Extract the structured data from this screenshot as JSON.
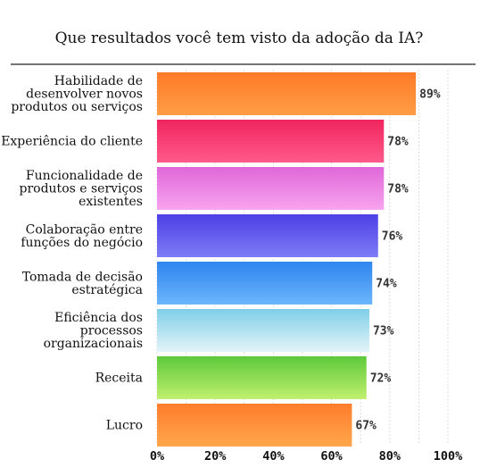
{
  "chart_data": {
    "type": "bar",
    "orientation": "horizontal",
    "title": "Que resultados você tem visto da adoção da IA?",
    "xlabel": "",
    "ylabel": "",
    "xlim": [
      0,
      100
    ],
    "grid": true,
    "categories": [
      "Habilidade de desenvolver novos produtos ou serviços",
      "Experiência do cliente",
      "Funcionalidade de produtos e serviços existentes",
      "Colaboração entre funções do negócio",
      "Tomada de decisão estratégica",
      "Eficiência dos processos organizacionais",
      "Receita",
      "Lucro"
    ],
    "category_lines": [
      [
        "Habilidade de",
        "desenvolver novos",
        "produtos ou serviços"
      ],
      [
        "Experiência do cliente"
      ],
      [
        "Funcionalidade de",
        "produtos e serviços",
        "existentes"
      ],
      [
        "Colaboração entre",
        "funções do negócio"
      ],
      [
        "Tomada de decisão",
        "estratégica"
      ],
      [
        "Eficiência dos",
        "processos",
        "organizacionais"
      ],
      [
        "Receita"
      ],
      [
        "Lucro"
      ]
    ],
    "values": [
      89,
      78,
      78,
      76,
      74,
      73,
      72,
      67
    ],
    "value_labels": [
      "89%",
      "78%",
      "78%",
      "76%",
      "74%",
      "73%",
      "72%",
      "67%"
    ],
    "ticks": [
      0,
      20,
      40,
      60,
      80,
      100
    ],
    "tick_labels": [
      "0%",
      "20%",
      "40%",
      "60%",
      "80%",
      "100%"
    ],
    "bar_gradients": [
      [
        "#ff9d45",
        "#ff7a28"
      ],
      [
        "#ff5a8a",
        "#f0255f"
      ],
      [
        "#f8a4f0",
        "#e066d8"
      ],
      [
        "#7d7cf6",
        "#4d3fe6"
      ],
      [
        "#6bb5fb",
        "#2f86ef"
      ],
      [
        "#e4f4f9",
        "#7fcfe8"
      ],
      [
        "#c2ef6e",
        "#5cc93a"
      ],
      [
        "#ffa64c",
        "#ff7d2c"
      ]
    ]
  }
}
